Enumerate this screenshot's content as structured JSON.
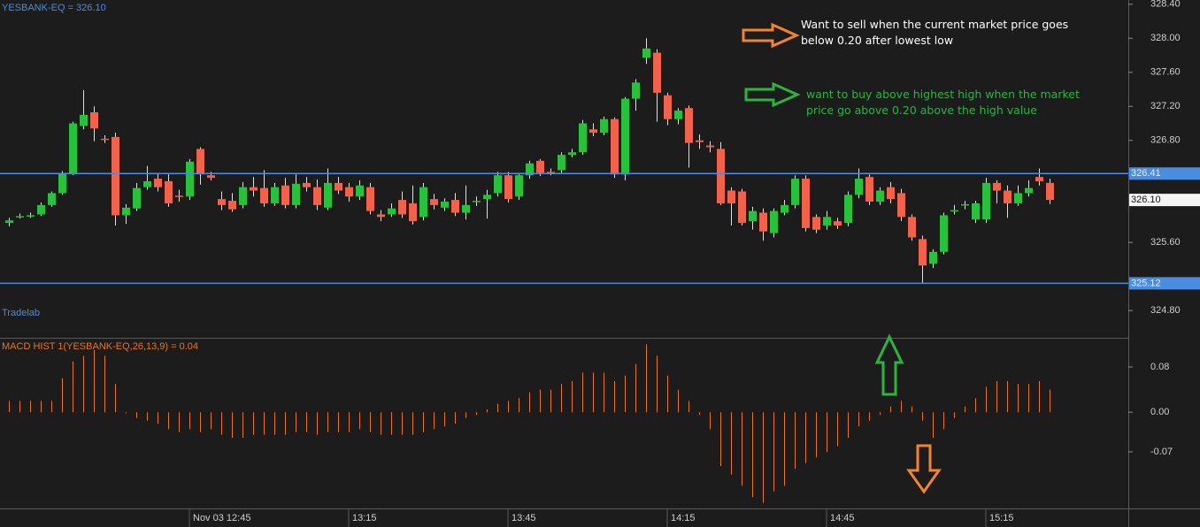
{
  "chart_data": [
    {
      "type": "candlestick",
      "title": "YESBANK-EQ = 326.10",
      "watermark": "Tradelab",
      "categories": [
        null,
        null,
        null,
        null,
        null,
        null,
        null,
        null,
        null,
        null,
        null,
        null,
        null,
        null,
        null,
        null,
        null,
        "Nov 03 12:45",
        null,
        null,
        null,
        null,
        null,
        null,
        null,
        null,
        null,
        null,
        null,
        null,
        null,
        null,
        "13:15",
        null,
        null,
        null,
        null,
        null,
        null,
        null,
        null,
        null,
        null,
        null,
        null,
        null,
        null,
        "13:45",
        null,
        null,
        null,
        null,
        null,
        null,
        null,
        null,
        null,
        null,
        null,
        null,
        null,
        null,
        "14:15",
        null,
        null,
        null,
        null,
        null,
        null,
        null,
        null,
        null,
        null,
        null,
        null,
        null,
        null,
        "14:45",
        null,
        null,
        null,
        null,
        null,
        null,
        null,
        null,
        null,
        null,
        null,
        null,
        null,
        null,
        "15:15",
        null,
        null,
        null,
        null,
        null,
        null
      ],
      "open": [
        325.83,
        325.9,
        325.91,
        325.93,
        326.04,
        326.18,
        326.41,
        326.97,
        327.13,
        326.82,
        326.84,
        325.92,
        326.0,
        326.25,
        326.35,
        326.32,
        326.15,
        326.14,
        326.7,
        326.39,
        326.11,
        326.09,
        326.04,
        326.25,
        326.24,
        326.06,
        326.27,
        326.04,
        326.3,
        326.25,
        326.01,
        326.3,
        326.25,
        326.14,
        326.25,
        325.93,
        325.93,
        326.1,
        326.06,
        325.9,
        326.11,
        326.01,
        326.1,
        325.95,
        326.08,
        326.11,
        326.18,
        326.39,
        326.14,
        326.39,
        326.56,
        326.43,
        326.45,
        326.63,
        326.66,
        326.93,
        326.89,
        327.05,
        326.4,
        327.29,
        327.77,
        327.83,
        327.33,
        327.05,
        327.18,
        326.8,
        326.74,
        326.7,
        326.21,
        326.2,
        325.85,
        325.95,
        325.71,
        325.95,
        326.04,
        326.35,
        325.9,
        325.8,
        325.85,
        325.83,
        326.16,
        326.37,
        326.08,
        326.25,
        326.18,
        325.9,
        325.64,
        325.35,
        325.49,
        325.97,
        326.04,
        325.87,
        325.87,
        326.3,
        326.21,
        326.06,
        326.18,
        326.37,
        326.3
      ],
      "high": [
        325.89,
        325.94,
        325.95,
        326.07,
        326.2,
        326.44,
        327.02,
        327.39,
        327.2,
        326.86,
        326.89,
        326.05,
        326.3,
        326.5,
        326.41,
        326.4,
        326.22,
        326.58,
        326.72,
        326.43,
        326.2,
        326.18,
        326.31,
        326.37,
        326.45,
        326.3,
        326.36,
        326.4,
        326.37,
        326.34,
        326.47,
        326.37,
        326.3,
        326.33,
        326.3,
        325.98,
        326.06,
        326.2,
        326.27,
        326.3,
        326.17,
        326.12,
        326.18,
        326.27,
        326.14,
        326.22,
        326.43,
        326.43,
        326.41,
        326.56,
        326.58,
        326.47,
        326.66,
        326.7,
        327.04,
        327.0,
        327.08,
        327.07,
        327.31,
        327.52,
        328.0,
        327.87,
        327.36,
        327.18,
        327.21,
        326.87,
        326.79,
        326.78,
        326.25,
        326.23,
        326.02,
        326.0,
        326.0,
        326.1,
        326.39,
        326.39,
        325.93,
        325.97,
        325.89,
        326.2,
        326.47,
        326.4,
        326.25,
        326.31,
        326.23,
        325.93,
        325.68,
        325.52,
        325.95,
        326.04,
        326.09,
        326.09,
        326.36,
        326.33,
        326.27,
        326.27,
        326.33,
        326.47,
        326.35
      ],
      "low": [
        325.79,
        325.88,
        325.89,
        325.91,
        326.02,
        326.16,
        326.39,
        326.93,
        326.79,
        326.77,
        325.8,
        325.82,
        325.97,
        326.22,
        326.2,
        326.02,
        326.08,
        326.1,
        326.28,
        326.33,
        325.98,
        325.96,
        326.0,
        326.14,
        326.02,
        326.03,
        326.0,
        326.0,
        326.2,
        325.98,
        325.98,
        326.17,
        326.08,
        326.1,
        325.93,
        325.85,
        325.9,
        325.89,
        325.81,
        325.86,
        325.99,
        325.97,
        325.91,
        325.87,
        326.03,
        325.88,
        326.14,
        326.07,
        326.1,
        326.35,
        326.38,
        326.39,
        326.42,
        326.6,
        326.63,
        326.85,
        326.86,
        326.36,
        326.33,
        327.15,
        327.7,
        327.02,
        326.98,
        326.99,
        326.48,
        326.7,
        326.66,
        326.04,
        325.8,
        325.8,
        325.75,
        325.62,
        325.66,
        325.92,
        326.0,
        325.73,
        325.71,
        325.75,
        325.76,
        325.79,
        326.12,
        326.04,
        326.04,
        326.06,
        325.85,
        325.62,
        325.12,
        325.3,
        325.46,
        325.93,
        325.99,
        325.83,
        325.83,
        326.06,
        325.89,
        326.03,
        326.14,
        326.27,
        326.05
      ],
      "close": [
        325.86,
        325.91,
        325.92,
        326.04,
        326.18,
        326.41,
        327.0,
        327.1,
        326.94,
        326.81,
        325.92,
        326.01,
        326.24,
        326.32,
        326.25,
        326.06,
        326.14,
        326.55,
        326.4,
        326.36,
        326.04,
        325.99,
        326.25,
        326.21,
        326.06,
        326.25,
        326.04,
        326.29,
        326.25,
        326.04,
        326.3,
        326.21,
        326.14,
        326.27,
        325.97,
        325.9,
        326.0,
        325.93,
        325.85,
        326.25,
        326.04,
        326.08,
        325.95,
        326.04,
        326.09,
        326.16,
        326.39,
        326.11,
        326.39,
        326.53,
        326.42,
        326.42,
        326.63,
        326.66,
        327.0,
        326.89,
        327.05,
        326.4,
        327.29,
        327.48,
        327.88,
        327.36,
        327.05,
        327.15,
        326.77,
        326.78,
        326.72,
        326.06,
        326.06,
        325.83,
        325.97,
        325.73,
        325.97,
        326.04,
        326.35,
        325.77,
        325.75,
        325.9,
        325.8,
        326.16,
        326.35,
        326.08,
        326.21,
        326.11,
        325.9,
        325.66,
        325.33,
        325.49,
        325.92,
        325.98,
        326.05,
        326.06,
        326.3,
        326.21,
        326.06,
        326.18,
        326.24,
        326.32,
        326.1
      ],
      "up_color": "#27c13b",
      "down_color": "#f2624b",
      "wick_color": "#e0e0e0",
      "ylim": [
        324.48,
        328.45
      ],
      "yticks": [
        {
          "value": 324.8,
          "label": "324.80"
        },
        {
          "value": 325.6,
          "label": "325.60"
        },
        {
          "value": 326.8,
          "label": "326.80"
        },
        {
          "value": 327.2,
          "label": "327.20"
        },
        {
          "value": 327.6,
          "label": "327.60"
        },
        {
          "value": 328.0,
          "label": "328.00"
        },
        {
          "value": 328.4,
          "label": "328.40"
        }
      ],
      "hlines": [
        {
          "value": 326.41,
          "label": "326.41"
        },
        {
          "value": 325.12,
          "label": "325.12"
        }
      ],
      "hline_color": "#4a8de0",
      "last_price": {
        "value": 326.1,
        "label": "326.10"
      },
      "annotations": [
        "Want to sell when the current market price goes below 0.20  after lowest low",
        "want to buy above highest high when the market price go above 0.20 above the high value"
      ]
    },
    {
      "type": "bar",
      "title": "MACD HIST 1(YESBANK-EQ,26,13,9) = 0.04",
      "values": [
        0.02,
        0.02,
        0.02,
        0.02,
        0.02,
        0.06,
        0.09,
        0.1,
        0.11,
        0.1,
        0.05,
        -0.002,
        -0.01,
        -0.015,
        -0.02,
        -0.03,
        -0.035,
        -0.03,
        -0.035,
        -0.03,
        -0.04,
        -0.045,
        -0.045,
        -0.04,
        -0.04,
        -0.04,
        -0.04,
        -0.035,
        -0.035,
        -0.04,
        -0.035,
        -0.035,
        -0.035,
        -0.03,
        -0.035,
        -0.04,
        -0.04,
        -0.04,
        -0.04,
        -0.035,
        -0.03,
        -0.025,
        -0.02,
        -0.01,
        -0.005,
        0.005,
        0.015,
        0.02,
        0.025,
        0.035,
        0.04,
        0.04,
        0.05,
        0.055,
        0.07,
        0.07,
        0.07,
        0.055,
        0.065,
        0.085,
        0.12,
        0.1,
        0.065,
        0.04,
        0.02,
        -0.005,
        -0.03,
        -0.095,
        -0.11,
        -0.13,
        -0.15,
        -0.16,
        -0.14,
        -0.13,
        -0.1,
        -0.09,
        -0.08,
        -0.07,
        -0.06,
        -0.045,
        -0.025,
        -0.015,
        -0.005,
        0.01,
        0.02,
        0.01,
        -0.015,
        -0.045,
        -0.03,
        -0.01,
        0.01,
        0.025,
        0.045,
        0.055,
        0.055,
        0.05,
        0.05,
        0.055,
        0.04
      ],
      "color": "#e8742a",
      "ylim": [
        -0.17,
        0.13
      ],
      "yticks": [
        {
          "value": -0.07,
          "label": "-0.07"
        },
        {
          "value": 0,
          "label": "0.00"
        },
        {
          "value": 0.08,
          "label": "0.08"
        }
      ]
    }
  ]
}
